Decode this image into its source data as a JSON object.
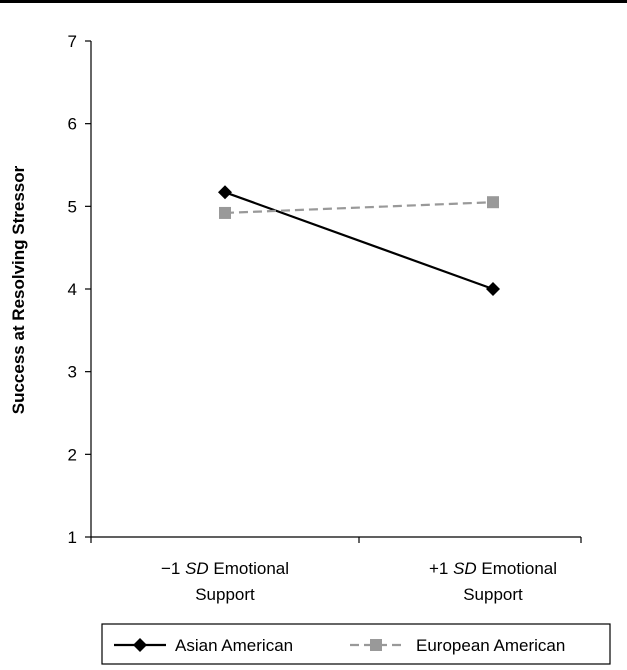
{
  "chart_data": {
    "type": "line",
    "ylabel": "Success at Resolving Stressor",
    "ylim": [
      1,
      7
    ],
    "yticks": [
      "1",
      "2",
      "3",
      "4",
      "5",
      "6",
      "7"
    ],
    "categories": [
      {
        "line1_pre": "−1 ",
        "line1_em": "SD",
        "line1_post": " Emotional",
        "line2": "Support"
      },
      {
        "line1_pre": "+1 ",
        "line1_em": "SD",
        "line1_post": " Emotional",
        "line2": "Support"
      }
    ],
    "series": [
      {
        "name": "Asian American",
        "values": [
          5.17,
          4.0
        ],
        "color": "#000000",
        "marker": "diamond",
        "dash": "solid"
      },
      {
        "name": "European American",
        "values": [
          4.92,
          5.05
        ],
        "color": "#999999",
        "marker": "square",
        "dash": "dashed"
      }
    ],
    "legend_position": "bottom"
  }
}
